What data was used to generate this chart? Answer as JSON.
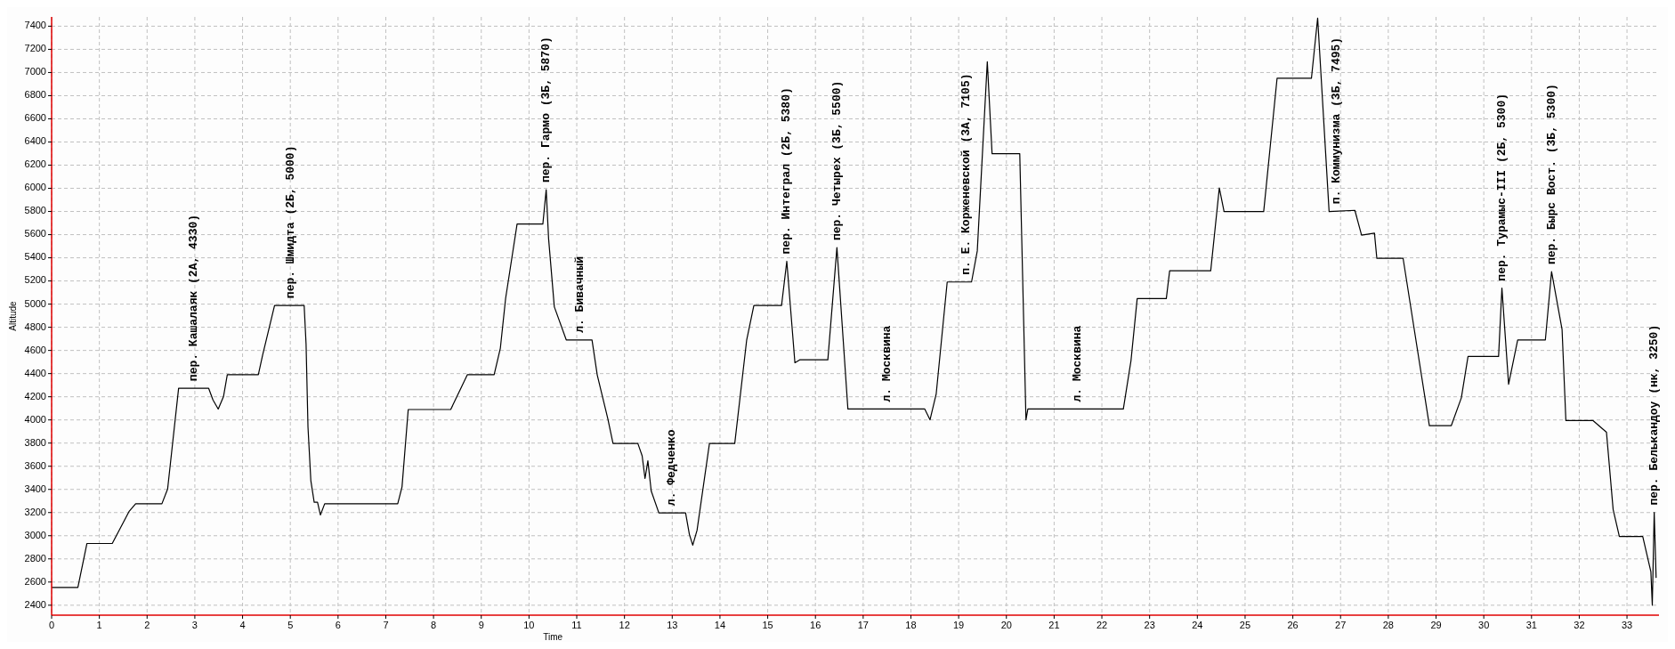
{
  "chart_data": {
    "type": "line",
    "xlabel": "Time",
    "ylabel": "Altitude",
    "xlim": [
      0,
      33.67
    ],
    "ylim": [
      2314,
      7480
    ],
    "xticks": [
      0,
      1,
      2,
      3,
      4,
      5,
      6,
      7,
      8,
      9,
      10,
      11,
      12,
      13,
      14,
      15,
      16,
      17,
      18,
      19,
      20,
      21,
      22,
      23,
      24,
      25,
      26,
      27,
      28,
      29,
      30,
      31,
      32,
      33
    ],
    "yticks": [
      2400,
      2600,
      2800,
      3000,
      3200,
      3400,
      3600,
      3800,
      4000,
      4200,
      4400,
      4600,
      4800,
      5000,
      5200,
      5400,
      5600,
      5800,
      6000,
      6200,
      6400,
      6600,
      6800,
      7000,
      7200,
      7400
    ],
    "grid": true,
    "series": [
      {
        "color": "#000000",
        "x": [
          0,
          0.55,
          0.74,
          1.27,
          1.62,
          1.76,
          2.31,
          2.43,
          2.66,
          3.29,
          3.38,
          3.49,
          3.6,
          3.68,
          4.33,
          4.42,
          4.67,
          5.29,
          5.33,
          5.37,
          5.43,
          5.5,
          5.57,
          5.63,
          5.72,
          7.25,
          7.34,
          7.47,
          8.36,
          8.71,
          9.27,
          9.4,
          9.51,
          9.75,
          10.29,
          10.36,
          10.41,
          10.53,
          10.78,
          11.32,
          11.43,
          11.65,
          11.76,
          12.28,
          12.37,
          12.43,
          12.49,
          12.56,
          12.72,
          13.28,
          13.36,
          13.43,
          13.52,
          13.78,
          14.31,
          14.56,
          14.71,
          15.29,
          15.4,
          15.57,
          15.67,
          16.26,
          16.45,
          16.68,
          18.29,
          18.4,
          18.53,
          18.76,
          19.27,
          19.39,
          19.6,
          19.7,
          20.28,
          20.41,
          20.45,
          22.45,
          22.61,
          22.74,
          23.35,
          23.42,
          24.28,
          24.46,
          24.56,
          25.39,
          25.67,
          26.39,
          26.52,
          26.76,
          27.3,
          27.44,
          27.71,
          27.76,
          28.31,
          28.86,
          29.32,
          29.53,
          29.67,
          30.31,
          30.38,
          30.52,
          30.71,
          31.29,
          31.42,
          31.64,
          31.72,
          32.29,
          32.57,
          32.71,
          32.84,
          33.33,
          33.5,
          33.53,
          33.57,
          33.61
        ],
        "values": [
          2554,
          2554,
          2933,
          2933,
          3208,
          3276,
          3276,
          3404,
          4273,
          4273,
          4173,
          4094,
          4201,
          4391,
          4391,
          4559,
          4988,
          4988,
          4655,
          3940,
          3476,
          3290,
          3290,
          3179,
          3276,
          3276,
          3422,
          4090,
          4090,
          4391,
          4391,
          4620,
          5049,
          5691,
          5691,
          5988,
          5567,
          4977,
          4691,
          4691,
          4387,
          4012,
          3797,
          3797,
          3690,
          3494,
          3647,
          3386,
          3197,
          3197,
          3011,
          2918,
          3047,
          3797,
          3797,
          4691,
          4988,
          4988,
          5370,
          4494,
          4519,
          4519,
          5488,
          4094,
          4094,
          4001,
          4226,
          5191,
          5191,
          5459,
          7093,
          6299,
          6299,
          4001,
          4094,
          4094,
          4512,
          5048,
          5048,
          5288,
          5288,
          6003,
          5799,
          5799,
          6950,
          6950,
          7470,
          5799,
          5810,
          5595,
          5613,
          5395,
          5395,
          3951,
          3951,
          4191,
          4548,
          4548,
          5138,
          4308,
          4691,
          4691,
          5281,
          4780,
          3994,
          3994,
          3894,
          3226,
          2993,
          2993,
          2690,
          2400,
          3201,
          2636
        ]
      }
    ],
    "annotations": [
      {
        "text": "пер. Кашалаяк (2А, 4330)",
        "x": 2.97,
        "y": 4273
      },
      {
        "text": "пер. Шмидта (2Б, 5000)",
        "x": 5.01,
        "y": 4988
      },
      {
        "text": "пер. Гармо (3Б, 5870)",
        "x": 10.36,
        "y": 5988
      },
      {
        "text": "л. Бивачный",
        "x": 11.06,
        "y": 4691
      },
      {
        "text": "л. Федченко",
        "x": 12.98,
        "y": 3197
      },
      {
        "text": "пер. Интеграл (2Б, 5380)",
        "x": 15.4,
        "y": 5370
      },
      {
        "text": "пер. Четырех (3Б, 5500)",
        "x": 16.45,
        "y": 5488
      },
      {
        "text": "л. Москвина",
        "x": 17.5,
        "y": 4094
      },
      {
        "text": "п. Е. Корженевской (3А, 7105)",
        "x": 19.15,
        "y": 5191
      },
      {
        "text": "л. Москвина",
        "x": 21.48,
        "y": 4094
      },
      {
        "text": "п. Коммунизма (3Б, 7495)",
        "x": 26.91,
        "y": 5803
      },
      {
        "text": "пер. Турамыс-III (2Б, 5300)",
        "x": 30.38,
        "y": 5138
      },
      {
        "text": "пер. Бырс Вост. (3Б, 5300)",
        "x": 31.42,
        "y": 5281
      },
      {
        "text": "пер. Белькандоу (нк, 3250)",
        "x": 33.57,
        "y": 3201
      }
    ]
  }
}
